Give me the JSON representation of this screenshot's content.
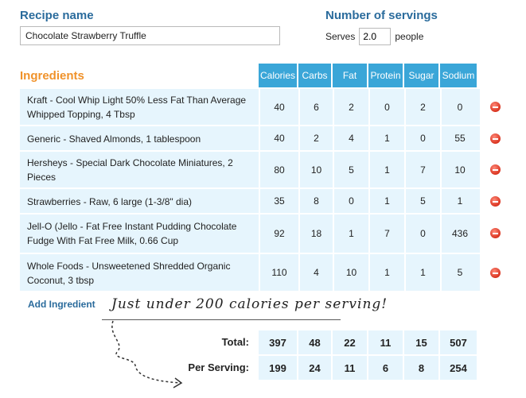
{
  "recipe": {
    "label": "Recipe name",
    "value": "Chocolate Strawberry Truffle"
  },
  "servings": {
    "label": "Number of servings",
    "prefix": "Serves",
    "value": "2.0",
    "suffix": "people"
  },
  "ingredients_title": "Ingredients",
  "columns": [
    "Calories",
    "Carbs",
    "Fat",
    "Protein",
    "Sugar",
    "Sodium"
  ],
  "rows": [
    {
      "name": "Kraft - Cool Whip Light 50% Less Fat Than Average Whipped Topping, 4 Tbsp",
      "vals": [
        "40",
        "6",
        "2",
        "0",
        "2",
        "0"
      ]
    },
    {
      "name": "Generic - Shaved Almonds, 1 tablespoon",
      "vals": [
        "40",
        "2",
        "4",
        "1",
        "0",
        "55"
      ]
    },
    {
      "name": "Hersheys - Special Dark Chocolate Miniatures, 2 Pieces",
      "vals": [
        "80",
        "10",
        "5",
        "1",
        "7",
        "10"
      ]
    },
    {
      "name": "Strawberries - Raw, 6 large (1-3/8\" dia)",
      "vals": [
        "35",
        "8",
        "0",
        "1",
        "5",
        "1"
      ]
    },
    {
      "name": "Jell-O (Jello - Fat Free Instant Pudding Chocolate Fudge With Fat Free Milk, 0.66 Cup",
      "vals": [
        "92",
        "18",
        "1",
        "7",
        "0",
        "436"
      ]
    },
    {
      "name": "Whole Foods - Unsweetened Shredded Organic Coconut, 3 tbsp",
      "vals": [
        "110",
        "4",
        "10",
        "1",
        "1",
        "5"
      ]
    }
  ],
  "add_ingredient": "Add Ingredient",
  "annotation": "Just under 200 calories per serving!",
  "totals": {
    "label": "Total:",
    "vals": [
      "397",
      "48",
      "22",
      "11",
      "15",
      "507"
    ]
  },
  "per_serving": {
    "label": "Per Serving:",
    "vals": [
      "199",
      "24",
      "11",
      "6",
      "8",
      "254"
    ]
  },
  "colors": {
    "header": "#3aa6d8",
    "row_bg": "#e6f5fd",
    "title_blue": "#2a6b9c",
    "ingredients_orange": "#f0922a",
    "delete_red": "#d9331f"
  }
}
